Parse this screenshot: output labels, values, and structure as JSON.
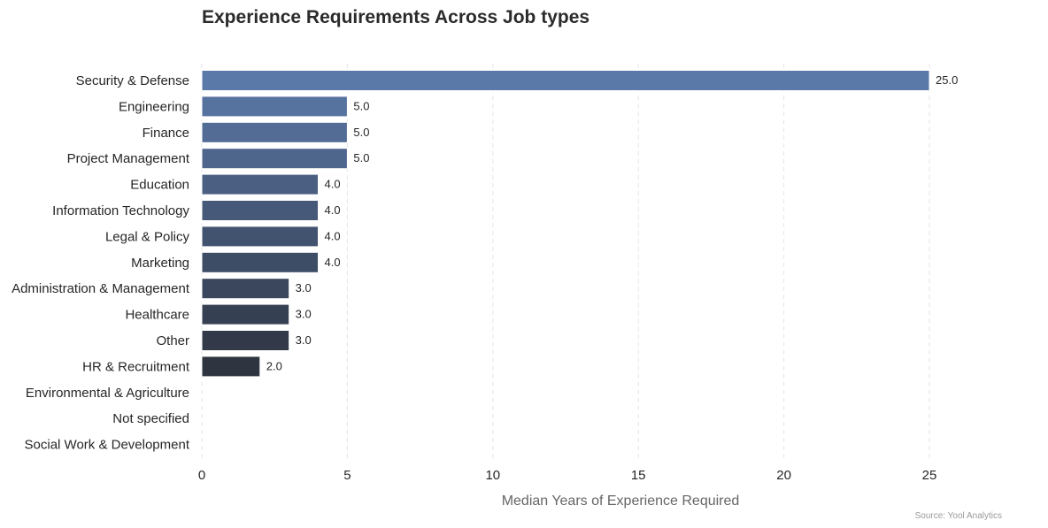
{
  "chart_data": {
    "type": "bar",
    "orientation": "horizontal",
    "title": "Experience Requirements Across Job types",
    "xlabel": "Median Years of Experience Required",
    "ylabel": "",
    "categories": [
      "Security & Defense",
      "Engineering",
      "Finance",
      "Project Management",
      "Education",
      "Information Technology",
      "Legal & Policy",
      "Marketing",
      "Administration & Management",
      "Healthcare",
      "Other",
      "HR & Recruitment",
      "Environmental & Agriculture",
      "Not specified",
      "Social Work & Development"
    ],
    "values": [
      25.0,
      5.0,
      5.0,
      5.0,
      4.0,
      4.0,
      4.0,
      4.0,
      3.0,
      3.0,
      3.0,
      2.0,
      0,
      0,
      0
    ],
    "value_labels": [
      "25.0",
      "5.0",
      "5.0",
      "5.0",
      "4.0",
      "4.0",
      "4.0",
      "4.0",
      "3.0",
      "3.0",
      "3.0",
      "2.0",
      "",
      "",
      ""
    ],
    "xlim": [
      0,
      27.5
    ],
    "xticks": [
      0,
      5,
      10,
      15,
      20,
      25
    ],
    "grid": "vertical dashed",
    "bar_color_top": "#5a78a8",
    "bar_color_bottom": "#2e3440",
    "source": "Source: Yool Analytics"
  }
}
